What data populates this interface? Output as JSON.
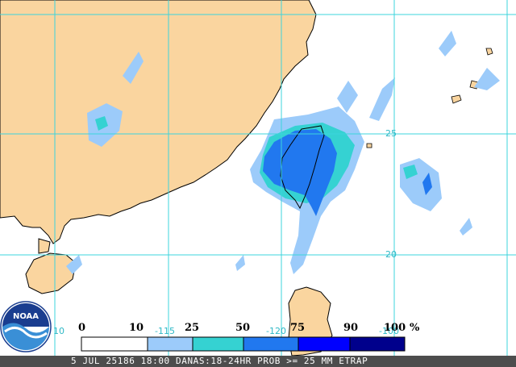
{
  "caption": "5 JUL 25186 18:00 DANAS:18-24HR PROB >= 25 MM ETRAP",
  "logo_text": "NOAA",
  "legend": {
    "ticks": [
      "0",
      "10",
      "25",
      "50",
      "75",
      "90",
      "100"
    ],
    "unit": "%",
    "colors": [
      "#ffffff",
      "#9ccbfa",
      "#35d2d2",
      "#2178ef",
      "#0000ff",
      "#00008c"
    ]
  },
  "grid_labels": {
    "lon_115": "-115",
    "lon_120": "-120",
    "lon_100": "-100",
    "lat_25": "25",
    "lat_20": "20",
    "lat_10": "10"
  },
  "colors": {
    "ocean": "#ffffff",
    "land": "#fad59f",
    "grid": "#3cd4dc",
    "coast": "#000000"
  }
}
